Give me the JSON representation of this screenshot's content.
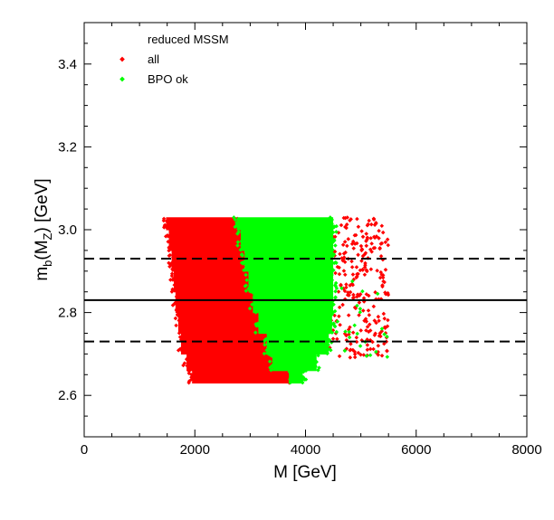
{
  "chart_data": {
    "type": "scatter",
    "title": "",
    "xlabel": "M [GeV]",
    "ylabel_main": "m",
    "ylabel_sub1": "b",
    "ylabel_mid": "(M",
    "ylabel_sub2": "Z",
    "ylabel_end": ") [GeV]",
    "xlim": [
      0,
      8000
    ],
    "ylim": [
      2.5,
      3.5
    ],
    "x_ticks": [
      0,
      2000,
      4000,
      6000,
      8000
    ],
    "x_tick_labels": [
      "0",
      "2000",
      "4000",
      "6000",
      "8000"
    ],
    "y_ticks": [
      2.6,
      2.8,
      3.0,
      3.2,
      3.4
    ],
    "y_tick_labels": [
      "2.6",
      "2.8",
      "3.0",
      "3.2",
      "3.4"
    ],
    "x_minor_step": 500,
    "y_minor_step": 0.05,
    "legend": {
      "title": "reduced MSSM",
      "entries": [
        {
          "label": "all",
          "color": "#ff0000"
        },
        {
          "label": "BPO ok",
          "color": "#00ff00"
        }
      ],
      "position": "top-left"
    },
    "horizontal_lines": [
      {
        "y": 2.93,
        "style": "dashed",
        "color": "#000000"
      },
      {
        "y": 2.83,
        "style": "solid",
        "color": "#000000"
      },
      {
        "y": 2.73,
        "style": "dashed",
        "color": "#000000"
      }
    ],
    "series": [
      {
        "name": "all",
        "color": "#ff0000",
        "regions": [
          {
            "y": [
              2.63,
              2.66
            ],
            "x": [
              1950,
              3700
            ]
          },
          {
            "y": [
              2.66,
              2.7
            ],
            "x": [
              1850,
              3400
            ]
          },
          {
            "y": [
              2.7,
              2.75
            ],
            "x": [
              1750,
              3300
            ]
          },
          {
            "y": [
              2.75,
              2.8
            ],
            "x": [
              1700,
              3150
            ]
          },
          {
            "y": [
              2.8,
              2.85
            ],
            "x": [
              1650,
              3050
            ]
          },
          {
            "y": [
              2.85,
              2.9
            ],
            "x": [
              1620,
              2970
            ]
          },
          {
            "y": [
              2.9,
              2.95
            ],
            "x": [
              1580,
              2900
            ]
          },
          {
            "y": [
              2.95,
              3.0
            ],
            "x": [
              1530,
              2830
            ]
          },
          {
            "y": [
              3.0,
              3.03
            ],
            "x": [
              1480,
              2760
            ]
          }
        ],
        "sparse_region": {
          "x": [
            4400,
            5500
          ],
          "y": [
            2.69,
            3.03
          ],
          "count": 260
        }
      },
      {
        "name": "BPO ok",
        "color": "#00ff00",
        "regions": [
          {
            "y": [
              2.63,
              2.66
            ],
            "x": [
              3700,
              3950
            ]
          },
          {
            "y": [
              2.66,
              2.7
            ],
            "x": [
              3400,
              4200
            ]
          },
          {
            "y": [
              2.7,
              2.75
            ],
            "x": [
              3300,
              4420
            ]
          },
          {
            "y": [
              2.75,
              2.8
            ],
            "x": [
              3150,
              4480
            ]
          },
          {
            "y": [
              2.8,
              2.85
            ],
            "x": [
              3050,
              4500
            ]
          },
          {
            "y": [
              2.85,
              2.9
            ],
            "x": [
              2970,
              4500
            ]
          },
          {
            "y": [
              2.9,
              2.95
            ],
            "x": [
              2900,
              4500
            ]
          },
          {
            "y": [
              2.95,
              3.0
            ],
            "x": [
              2830,
              4500
            ]
          },
          {
            "y": [
              3.0,
              3.03
            ],
            "x": [
              2760,
              4500
            ]
          }
        ],
        "sparse_region": {
          "x": [
            4500,
            5500
          ],
          "y": [
            2.69,
            2.92
          ],
          "count": 25
        }
      }
    ]
  }
}
